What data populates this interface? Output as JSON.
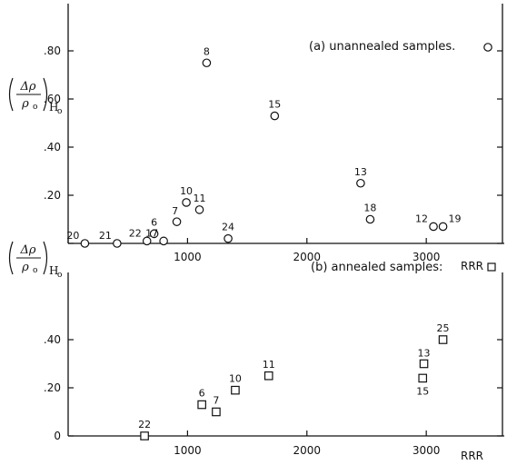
{
  "chart_data": [
    {
      "type": "scatter",
      "legend": "(a) unannealed samples.",
      "marker": "circle",
      "ylabel_symbol": "Δρ",
      "ylabel_denominator": "ρ",
      "ylabel_sub0": "o",
      "ylabel_sub": "H",
      "ylabel_subsub": "o",
      "xlabel": "RRR",
      "xlim": [
        0,
        3600
      ],
      "ylim": [
        -0.02,
        0.98
      ],
      "xticks": [
        0,
        1000,
        2000,
        3000
      ],
      "xtick_labels": [
        "1000",
        "2000",
        "3000"
      ],
      "yticks": [
        0,
        0.2,
        0.4,
        0.6,
        0.8
      ],
      "ytick_labels": [
        ".20",
        ".40",
        ".60",
        ".80"
      ],
      "points": [
        {
          "label": "20",
          "x": 140,
          "y": 0.0
        },
        {
          "label": "21",
          "x": 410,
          "y": 0.0
        },
        {
          "label": "22",
          "x": 660,
          "y": 0.01
        },
        {
          "label": "6",
          "x": 720,
          "y": 0.04
        },
        {
          "label": "17",
          "x": 800,
          "y": 0.01
        },
        {
          "label": "7",
          "x": 910,
          "y": 0.09
        },
        {
          "label": "10",
          "x": 990,
          "y": 0.17
        },
        {
          "label": "11",
          "x": 1100,
          "y": 0.14
        },
        {
          "label": "8",
          "x": 1160,
          "y": 0.75
        },
        {
          "label": "24",
          "x": 1340,
          "y": 0.02
        },
        {
          "label": "15",
          "x": 1730,
          "y": 0.53
        },
        {
          "label": "13",
          "x": 2450,
          "y": 0.25
        },
        {
          "label": "18",
          "x": 2530,
          "y": 0.1
        },
        {
          "label": "12",
          "x": 3060,
          "y": 0.07
        },
        {
          "label": "19",
          "x": 3140,
          "y": 0.07
        }
      ]
    },
    {
      "type": "scatter",
      "legend": "(b) annealed samples:",
      "marker": "square",
      "ylabel_symbol": "Δρ",
      "ylabel_denominator": "ρ",
      "ylabel_sub0": "o",
      "ylabel_sub": "H",
      "ylabel_subsub": "o",
      "xlabel": "RRR",
      "xlim": [
        0,
        3600
      ],
      "ylim": [
        0,
        0.6
      ],
      "xticks": [
        1000,
        2000,
        3000
      ],
      "xtick_labels": [
        "1000",
        "2000",
        "3000"
      ],
      "yticks": [
        0,
        0.2,
        0.4
      ],
      "ytick_labels": [
        "0",
        ".20",
        ".40"
      ],
      "points": [
        {
          "label": "22",
          "x": 640,
          "y": 0.0
        },
        {
          "label": "6",
          "x": 1120,
          "y": 0.13
        },
        {
          "label": "7",
          "x": 1240,
          "y": 0.1
        },
        {
          "label": "10",
          "x": 1400,
          "y": 0.19
        },
        {
          "label": "11",
          "x": 1680,
          "y": 0.25
        },
        {
          "label": "13",
          "x": 2980,
          "y": 0.3
        },
        {
          "label": "15",
          "x": 2970,
          "y": 0.24
        },
        {
          "label": "25",
          "x": 3140,
          "y": 0.4
        }
      ]
    }
  ]
}
